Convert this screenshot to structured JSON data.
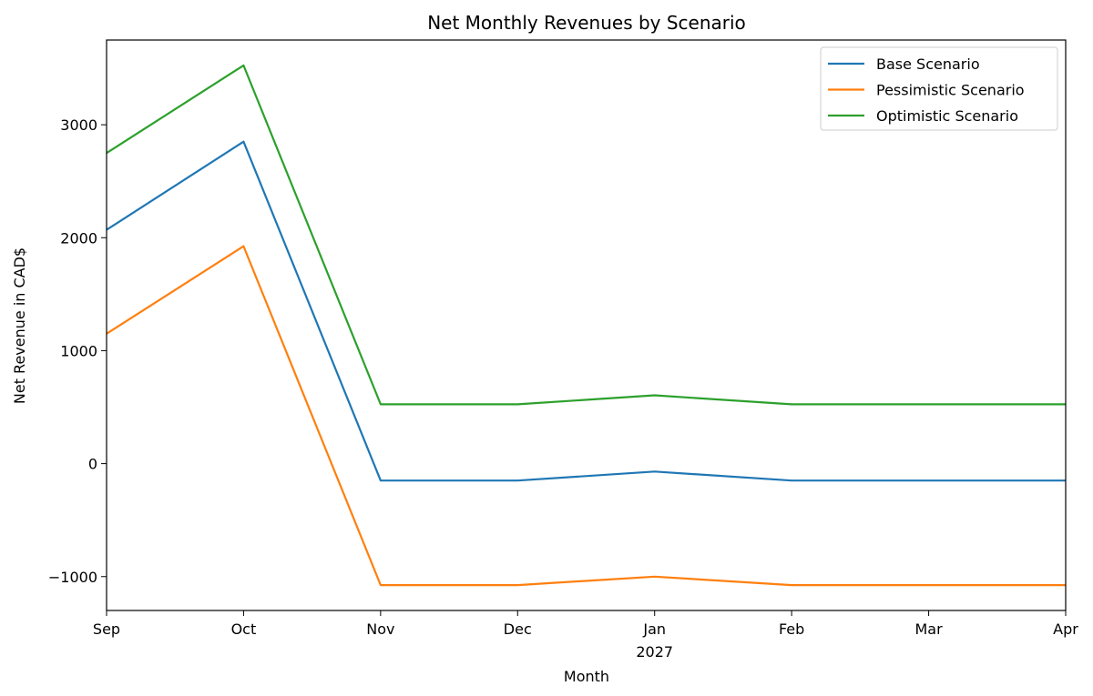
{
  "chart_data": {
    "type": "line",
    "title": "Net Monthly Revenues by Scenario",
    "xlabel": "Month",
    "ylabel": "Net Revenue in CAD$",
    "categories": [
      "Sep",
      "Oct",
      "Nov",
      "Dec",
      "Jan",
      "Feb",
      "Mar",
      "Apr"
    ],
    "x_sublabels": [
      "",
      "",
      "",
      "",
      "2027",
      "",
      "",
      ""
    ],
    "ylim": [
      -1300,
      3750
    ],
    "yticks": [
      -1000,
      0,
      1000,
      2000,
      3000
    ],
    "ytick_labels": [
      "−1000",
      "0",
      "1000",
      "2000",
      "3000"
    ],
    "grid": false,
    "legend_position": "top-right",
    "series": [
      {
        "name": "Base Scenario",
        "color": "#1f77b4",
        "values": [
          2070,
          2850,
          -150,
          -150,
          -70,
          -150,
          -150,
          -150
        ]
      },
      {
        "name": "Pessimistic Scenario",
        "color": "#ff7f0e",
        "values": [
          1150,
          1925,
          -1075,
          -1075,
          -1000,
          -1075,
          -1075,
          -1075
        ]
      },
      {
        "name": "Optimistic Scenario",
        "color": "#2ca02c",
        "values": [
          2750,
          3525,
          525,
          525,
          605,
          525,
          525,
          525
        ]
      }
    ]
  }
}
